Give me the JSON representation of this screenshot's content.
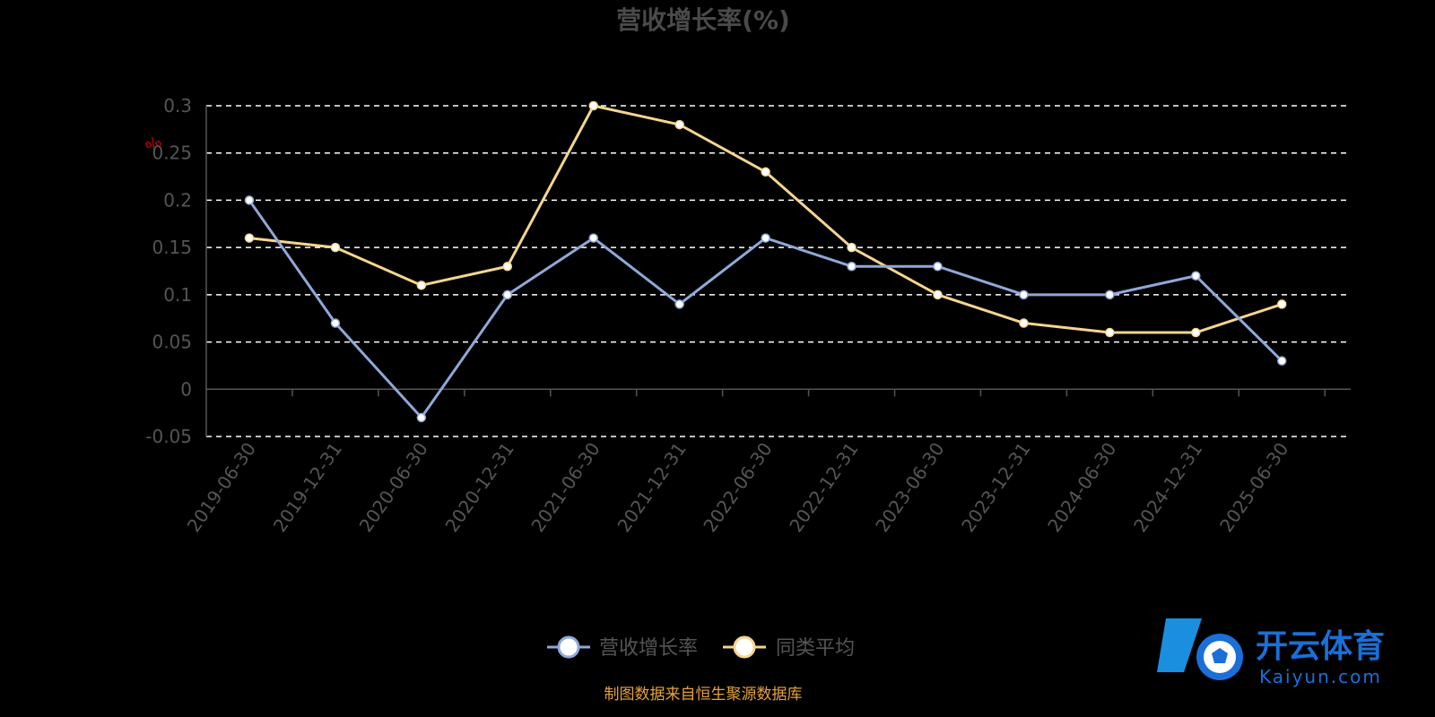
{
  "colors": {
    "background": "#000000",
    "series1": "#8fa8d8",
    "series2": "#f5d58f",
    "grid": "#ffffff",
    "axis": "#555555",
    "source": "#e6a23c",
    "unit": "#cc0000",
    "watermark": "#1a6fd8"
  },
  "chart_data": {
    "type": "line",
    "title": "营收增长率(%)",
    "ylabel": "%",
    "x": [
      "2019-06-30",
      "2019-12-31",
      "2020-06-30",
      "2020-12-31",
      "2021-06-30",
      "2021-12-31",
      "2022-06-30",
      "2022-12-31",
      "2023-06-30",
      "2023-12-31",
      "2024-06-30",
      "2024-12-31",
      "2025-06-30"
    ],
    "ylim": [
      -0.05,
      0.3
    ],
    "yticks": [
      "0.3",
      "0.25",
      "0.2",
      "0.15",
      "0.1",
      "0.05",
      "0",
      "-0.05"
    ],
    "grid": true,
    "legend_position": "bottom",
    "series": [
      {
        "name": "营收增长率",
        "values": [
          0.2,
          0.07,
          -0.03,
          0.1,
          0.16,
          0.09,
          0.16,
          0.13,
          0.13,
          0.1,
          0.1,
          0.12,
          0.03
        ]
      },
      {
        "name": "同类平均",
        "values": [
          0.16,
          0.15,
          0.11,
          0.13,
          0.3,
          0.28,
          0.23,
          0.15,
          0.1,
          0.07,
          0.06,
          0.06,
          0.09
        ]
      }
    ]
  },
  "footer": {
    "source": "制图数据来自恒生聚源数据库"
  },
  "watermark": {
    "icon": "soccer-ball-icon",
    "brand": "开云体育",
    "sub": "Kaiyun.com"
  }
}
